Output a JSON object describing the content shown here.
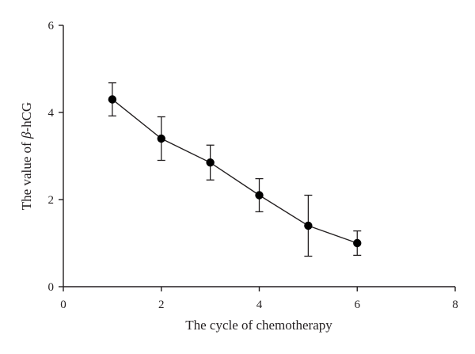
{
  "chart_data": {
    "type": "line",
    "title": "",
    "xlabel": "The cycle of chemotherapy",
    "ylabel_prefix": "The value of ",
    "ylabel_symbol": "β",
    "ylabel_suffix": "-hCG",
    "xlim": [
      0,
      8
    ],
    "ylim": [
      0,
      6
    ],
    "xticks": [
      0,
      2,
      4,
      6,
      8
    ],
    "yticks": [
      0,
      2,
      4,
      6
    ],
    "grid": false,
    "series": [
      {
        "x": [
          1,
          2,
          3,
          4,
          5,
          6
        ],
        "y": [
          4.3,
          3.4,
          2.85,
          2.1,
          1.4,
          1.0
        ],
        "err_low": [
          3.92,
          2.9,
          2.45,
          1.72,
          0.7,
          0.72
        ],
        "err_high": [
          4.68,
          3.9,
          3.25,
          2.48,
          2.1,
          1.28
        ],
        "color": "#000000"
      }
    ]
  }
}
